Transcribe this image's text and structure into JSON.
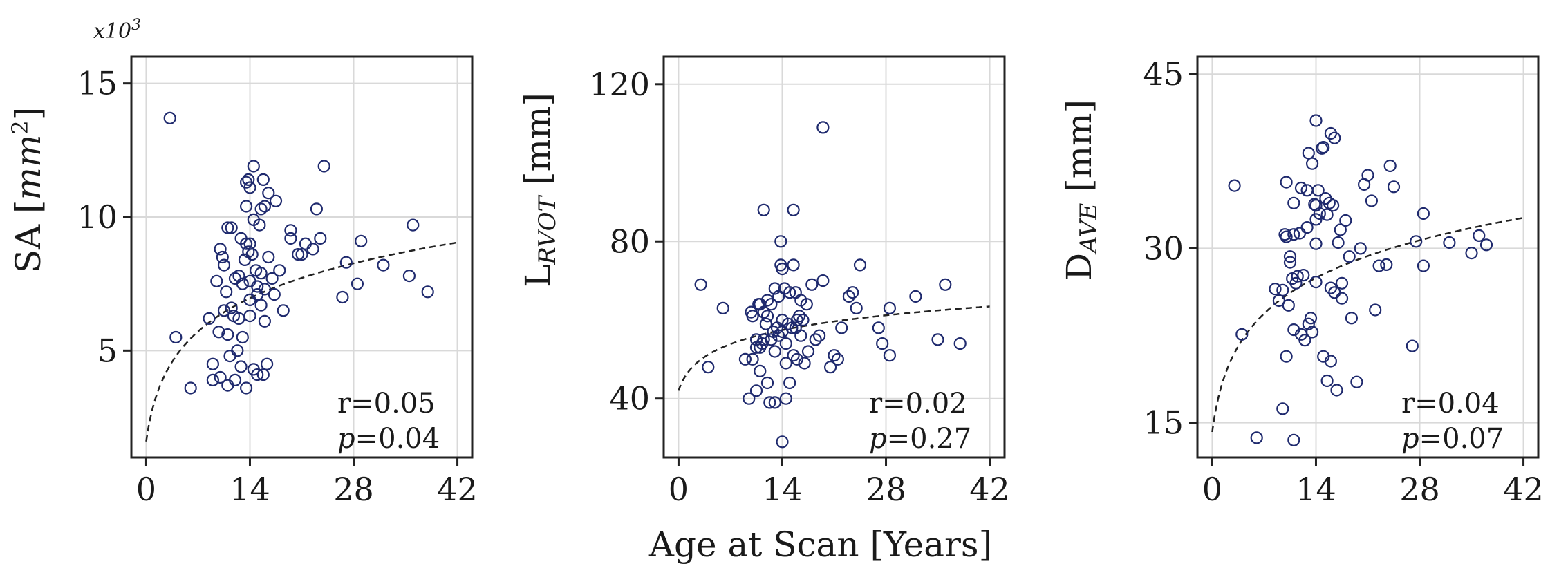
{
  "chart_data": [
    {
      "type": "scatter",
      "xlim": [
        -2,
        44
      ],
      "ylim": [
        1,
        16
      ],
      "xticks": [
        0,
        14,
        28,
        42
      ],
      "yticks": [
        5,
        10,
        15
      ],
      "y_multiplier": "x10",
      "y_multiplier_exp": "3",
      "ylabel_main": "SA [",
      "ylabel_unit": "mm",
      "ylabel_sup": "2",
      "ylabel_close": "]",
      "fit": {
        "a": 1.6,
        "b": 1.98
      },
      "r_label": "r=0.05",
      "p_symbol": "p",
      "p_value": "=0.04",
      "grid": true,
      "points": [
        [
          3.2,
          13.7
        ],
        [
          4.0,
          5.5
        ],
        [
          6.0,
          3.6
        ],
        [
          8.5,
          6.2
        ],
        [
          9.0,
          4.5
        ],
        [
          9.0,
          3.9
        ],
        [
          9.5,
          7.6
        ],
        [
          9.8,
          5.7
        ],
        [
          10.0,
          8.8
        ],
        [
          10.0,
          4.0
        ],
        [
          10.3,
          8.5
        ],
        [
          10.5,
          6.5
        ],
        [
          10.5,
          8.2
        ],
        [
          10.8,
          7.2
        ],
        [
          11.0,
          9.6
        ],
        [
          11.0,
          5.6
        ],
        [
          11.0,
          3.7
        ],
        [
          11.3,
          4.8
        ],
        [
          11.5,
          9.6
        ],
        [
          11.5,
          6.6
        ],
        [
          11.8,
          6.3
        ],
        [
          12.0,
          7.7
        ],
        [
          12.0,
          3.9
        ],
        [
          12.3,
          5.0
        ],
        [
          12.5,
          7.8
        ],
        [
          12.5,
          6.2
        ],
        [
          12.8,
          9.2
        ],
        [
          12.8,
          4.4
        ],
        [
          13.0,
          7.5
        ],
        [
          13.0,
          5.5
        ],
        [
          13.3,
          8.4
        ],
        [
          13.5,
          11.3
        ],
        [
          13.5,
          10.4
        ],
        [
          13.5,
          9.0
        ],
        [
          13.5,
          3.6
        ],
        [
          13.8,
          11.4
        ],
        [
          13.8,
          8.7
        ],
        [
          14.0,
          11.1
        ],
        [
          14.0,
          9.0
        ],
        [
          14.0,
          7.6
        ],
        [
          14.0,
          6.9
        ],
        [
          14.0,
          6.3
        ],
        [
          14.3,
          8.6
        ],
        [
          14.5,
          11.9
        ],
        [
          14.5,
          9.9
        ],
        [
          14.5,
          4.3
        ],
        [
          14.8,
          8.0
        ],
        [
          15.0,
          7.4
        ],
        [
          15.0,
          7.1
        ],
        [
          15.0,
          4.1
        ],
        [
          15.3,
          9.7
        ],
        [
          15.5,
          10.3
        ],
        [
          15.5,
          7.9
        ],
        [
          15.5,
          6.7
        ],
        [
          15.8,
          11.4
        ],
        [
          15.8,
          4.1
        ],
        [
          16.0,
          10.4
        ],
        [
          16.0,
          7.3
        ],
        [
          16.0,
          6.1
        ],
        [
          16.3,
          4.5
        ],
        [
          16.5,
          10.9
        ],
        [
          16.5,
          8.5
        ],
        [
          17.0,
          7.7
        ],
        [
          17.3,
          7.1
        ],
        [
          17.5,
          10.6
        ],
        [
          18.0,
          8.0
        ],
        [
          18.5,
          6.5
        ],
        [
          19.5,
          9.5
        ],
        [
          19.5,
          9.2
        ],
        [
          20.5,
          8.6
        ],
        [
          21.0,
          8.6
        ],
        [
          21.5,
          9.0
        ],
        [
          22.5,
          8.8
        ],
        [
          23.0,
          10.3
        ],
        [
          23.5,
          9.2
        ],
        [
          24.0,
          11.9
        ],
        [
          26.5,
          7.0
        ],
        [
          27.0,
          8.3
        ],
        [
          28.5,
          7.5
        ],
        [
          29.0,
          9.1
        ],
        [
          32.0,
          8.2
        ],
        [
          35.5,
          7.8
        ],
        [
          36.0,
          9.7
        ],
        [
          38.0,
          7.2
        ]
      ]
    },
    {
      "type": "scatter",
      "xlim": [
        -2,
        44
      ],
      "ylim": [
        25,
        127
      ],
      "xticks": [
        0,
        14,
        28,
        42
      ],
      "yticks": [
        40,
        80,
        120
      ],
      "ylabel_main": "L",
      "ylabel_sub": "RVOT",
      "ylabel_unit": " [mm]",
      "xlabel": "Age at Scan [Years]",
      "fit": {
        "a": 42,
        "b": 5.7
      },
      "r_label": "r=0.02",
      "p_symbol": "p",
      "p_value": "=0.27",
      "grid": true,
      "points": [
        [
          3.0,
          69
        ],
        [
          4.0,
          48
        ],
        [
          6.0,
          63
        ],
        [
          9.0,
          50
        ],
        [
          9.5,
          40
        ],
        [
          9.8,
          62
        ],
        [
          10.0,
          61
        ],
        [
          10.0,
          50
        ],
        [
          10.5,
          55
        ],
        [
          10.5,
          53
        ],
        [
          10.5,
          42
        ],
        [
          10.8,
          64
        ],
        [
          11.0,
          64
        ],
        [
          11.0,
          53
        ],
        [
          11.0,
          47
        ],
        [
          11.3,
          54
        ],
        [
          11.5,
          62
        ],
        [
          11.5,
          55
        ],
        [
          11.5,
          88
        ],
        [
          11.8,
          59
        ],
        [
          12.0,
          65
        ],
        [
          12.0,
          61
        ],
        [
          12.0,
          44
        ],
        [
          12.3,
          39
        ],
        [
          12.5,
          64
        ],
        [
          12.5,
          55
        ],
        [
          12.8,
          57
        ],
        [
          13.0,
          68
        ],
        [
          13.0,
          52
        ],
        [
          13.0,
          39
        ],
        [
          13.3,
          58
        ],
        [
          13.5,
          66
        ],
        [
          13.5,
          56
        ],
        [
          13.8,
          80
        ],
        [
          13.8,
          74
        ],
        [
          14.0,
          73
        ],
        [
          14.0,
          60
        ],
        [
          14.0,
          57
        ],
        [
          14.0,
          29
        ],
        [
          14.3,
          68
        ],
        [
          14.5,
          54
        ],
        [
          14.5,
          49
        ],
        [
          14.5,
          40
        ],
        [
          14.8,
          59
        ],
        [
          15.0,
          67
        ],
        [
          15.0,
          44
        ],
        [
          15.3,
          58
        ],
        [
          15.5,
          88
        ],
        [
          15.5,
          74
        ],
        [
          15.5,
          51
        ],
        [
          15.8,
          67
        ],
        [
          15.8,
          58
        ],
        [
          16.0,
          60
        ],
        [
          16.0,
          50
        ],
        [
          16.3,
          61
        ],
        [
          16.5,
          65
        ],
        [
          16.5,
          56
        ],
        [
          16.8,
          60
        ],
        [
          17.0,
          49
        ],
        [
          17.3,
          64
        ],
        [
          17.5,
          52
        ],
        [
          18.0,
          69
        ],
        [
          18.5,
          55
        ],
        [
          19.0,
          56
        ],
        [
          19.5,
          109
        ],
        [
          19.5,
          70
        ],
        [
          20.5,
          48
        ],
        [
          21.0,
          51
        ],
        [
          21.5,
          50
        ],
        [
          22.0,
          58
        ],
        [
          23.0,
          66
        ],
        [
          23.5,
          67
        ],
        [
          24.0,
          63
        ],
        [
          24.5,
          74
        ],
        [
          27.0,
          58
        ],
        [
          27.5,
          54
        ],
        [
          28.5,
          51
        ],
        [
          28.5,
          63
        ],
        [
          32.0,
          66
        ],
        [
          35.0,
          55
        ],
        [
          36.0,
          69
        ],
        [
          38.0,
          54
        ]
      ]
    },
    {
      "type": "scatter",
      "xlim": [
        -2,
        44
      ],
      "ylim": [
        12,
        46.5
      ],
      "xticks": [
        0,
        14,
        28,
        42
      ],
      "yticks": [
        15,
        30,
        45
      ],
      "ylabel_main": "D",
      "ylabel_sub": "AVE",
      "ylabel_unit": " [mm]",
      "fit": {
        "a": 14.2,
        "b": 4.9
      },
      "r_label": "r=0.04",
      "p_symbol": "p",
      "p_value": "=0.07",
      "grid": true,
      "points": [
        [
          3.0,
          35.4
        ],
        [
          4.0,
          22.6
        ],
        [
          6.0,
          13.7
        ],
        [
          8.5,
          26.5
        ],
        [
          9.0,
          25.5
        ],
        [
          9.5,
          16.2
        ],
        [
          9.5,
          26.4
        ],
        [
          9.8,
          31.2
        ],
        [
          10.0,
          35.7
        ],
        [
          10.0,
          31.0
        ],
        [
          10.0,
          20.7
        ],
        [
          10.3,
          25.1
        ],
        [
          10.5,
          29.3
        ],
        [
          10.5,
          28.8
        ],
        [
          10.8,
          27.4
        ],
        [
          11.0,
          33.9
        ],
        [
          11.0,
          31.2
        ],
        [
          11.0,
          23.0
        ],
        [
          11.0,
          13.5
        ],
        [
          11.3,
          27.0
        ],
        [
          11.5,
          27.6
        ],
        [
          11.8,
          31.3
        ],
        [
          12.0,
          35.2
        ],
        [
          12.0,
          22.6
        ],
        [
          12.3,
          27.7
        ],
        [
          12.5,
          22.1
        ],
        [
          12.8,
          35.0
        ],
        [
          12.8,
          31.8
        ],
        [
          13.0,
          38.2
        ],
        [
          13.0,
          23.5
        ],
        [
          13.3,
          24.0
        ],
        [
          13.5,
          37.3
        ],
        [
          13.5,
          22.8
        ],
        [
          13.8,
          33.8
        ],
        [
          14.0,
          41.0
        ],
        [
          14.0,
          33.7
        ],
        [
          14.0,
          32.5
        ],
        [
          14.0,
          30.4
        ],
        [
          14.0,
          27.1
        ],
        [
          14.3,
          35.0
        ],
        [
          14.5,
          33.0
        ],
        [
          14.8,
          38.6
        ],
        [
          15.0,
          38.7
        ],
        [
          15.0,
          20.7
        ],
        [
          15.3,
          34.3
        ],
        [
          15.5,
          32.9
        ],
        [
          15.5,
          18.6
        ],
        [
          15.8,
          33.9
        ],
        [
          16.0,
          39.9
        ],
        [
          16.0,
          26.6
        ],
        [
          16.0,
          20.3
        ],
        [
          16.3,
          33.7
        ],
        [
          16.5,
          39.5
        ],
        [
          16.5,
          26.2
        ],
        [
          16.8,
          17.8
        ],
        [
          17.0,
          30.5
        ],
        [
          17.3,
          31.6
        ],
        [
          17.5,
          27.0
        ],
        [
          17.5,
          25.7
        ],
        [
          18.0,
          32.4
        ],
        [
          18.5,
          29.3
        ],
        [
          18.8,
          24.0
        ],
        [
          19.5,
          18.5
        ],
        [
          20.0,
          30.0
        ],
        [
          20.5,
          35.5
        ],
        [
          21.0,
          36.3
        ],
        [
          21.5,
          34.1
        ],
        [
          22.0,
          24.7
        ],
        [
          22.5,
          28.5
        ],
        [
          23.5,
          28.6
        ],
        [
          24.0,
          37.1
        ],
        [
          24.5,
          35.3
        ],
        [
          27.0,
          21.6
        ],
        [
          27.5,
          30.6
        ],
        [
          28.5,
          28.5
        ],
        [
          28.5,
          33.0
        ],
        [
          32.0,
          30.5
        ],
        [
          35.0,
          29.6
        ],
        [
          36.0,
          31.1
        ],
        [
          37.0,
          30.3
        ]
      ]
    }
  ]
}
